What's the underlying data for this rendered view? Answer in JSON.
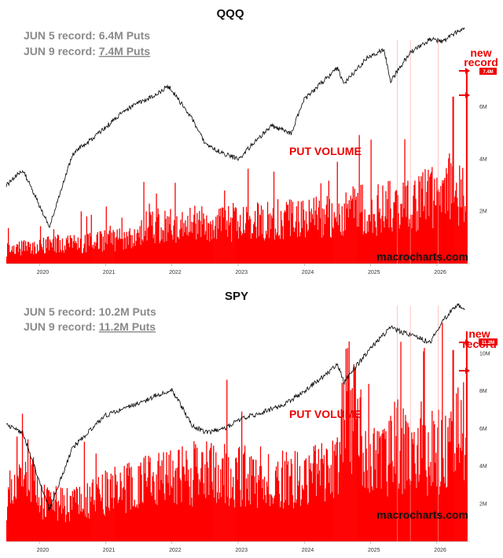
{
  "chart_data": [
    {
      "type": "bar",
      "title": "QQQ",
      "subtitle_lines": [
        {
          "prefix": "JUN 5 record: ",
          "value": "6.4M Puts"
        },
        {
          "prefix": "JUN 9 record: ",
          "value": "7.4M Puts"
        }
      ],
      "series_label": "PUT VOLUME",
      "annotation": "new record",
      "badge": "7.4M",
      "watermark": "macrocharts.com",
      "x_ticks": [
        "2020",
        "2021",
        "2022",
        "2023",
        "2024",
        "2025",
        "2026"
      ],
      "y_ticks": [
        "2M",
        "4M",
        "6M"
      ],
      "y_tick_values": [
        2,
        4,
        6
      ],
      "ylim": [
        0,
        9.2
      ],
      "xlim": [
        2019.5,
        2026.5
      ],
      "series": [
        {
          "name": "PUT VOLUME",
          "kind": "bars",
          "color": "#ff0000",
          "x": [
            2019.5,
            2020.0,
            2020.25,
            2020.5,
            2021.0,
            2021.5,
            2021.55,
            2022.0,
            2022.5,
            2023.0,
            2023.5,
            2024.0,
            2024.5,
            2024.6,
            2025.0,
            2025.3,
            2025.5,
            2025.7,
            2025.85,
            2026.0,
            2026.2,
            2026.3,
            2026.4,
            2026.44
          ],
          "values": [
            0.6,
            0.8,
            0.9,
            0.85,
            1.0,
            1.1,
            1.6,
            1.7,
            1.8,
            1.8,
            1.9,
            2.0,
            2.1,
            2.4,
            2.3,
            2.5,
            2.8,
            2.6,
            2.9,
            3.0,
            3.3,
            3.0,
            6.4,
            7.4
          ]
        },
        {
          "kind": "price",
          "color": "#000000",
          "x": [
            2019.5,
            2019.75,
            2020.15,
            2020.5,
            2020.9,
            2021.3,
            2021.7,
            2021.95,
            2022.3,
            2022.5,
            2022.8,
            2023.0,
            2023.5,
            2023.8,
            2024.0,
            2024.5,
            2024.6,
            2024.95,
            2025.2,
            2025.3,
            2025.6,
            2025.9,
            2026.1,
            2026.3,
            2026.42
          ],
          "values": [
            3.0,
            3.6,
            1.4,
            4.2,
            5.0,
            5.9,
            6.4,
            6.8,
            5.6,
            4.6,
            4.2,
            4.0,
            5.3,
            5.0,
            6.3,
            7.5,
            6.9,
            7.9,
            8.2,
            7.0,
            8.1,
            8.6,
            8.5,
            8.9,
            9.0
          ]
        }
      ]
    },
    {
      "type": "bar",
      "title": "SPY",
      "subtitle_lines": [
        {
          "prefix": "JUN 5 record: ",
          "value": "10.2M Puts"
        },
        {
          "prefix": "JUN 9 record: ",
          "value": "11.2M Puts"
        }
      ],
      "series_label": "PUT VOLUME",
      "annotation": "new record",
      "badge": "11.2M",
      "watermark": "macrocharts.com",
      "x_ticks": [
        "2020",
        "2021",
        "2022",
        "2023",
        "2024",
        "2025",
        "2026"
      ],
      "y_ticks": [
        "2M",
        "4M",
        "6M",
        "8M",
        "10M"
      ],
      "y_tick_values": [
        2,
        4,
        6,
        8,
        10
      ],
      "ylim": [
        0,
        13.5
      ],
      "xlim": [
        2019.5,
        2026.5
      ],
      "series": [
        {
          "name": "PUT VOLUME",
          "kind": "bars",
          "color": "#ff0000",
          "x": [
            2019.5,
            2019.65,
            2019.75,
            2020.0,
            2020.5,
            2021.0,
            2021.5,
            2022.0,
            2022.5,
            2023.0,
            2023.5,
            2024.0,
            2024.5,
            2024.6,
            2025.0,
            2025.2,
            2025.4,
            2025.6,
            2025.8,
            2026.0,
            2026.2,
            2026.3,
            2026.4,
            2026.44
          ],
          "values": [
            2.5,
            4.5,
            5.5,
            2.4,
            2.2,
            3.0,
            3.4,
            4.0,
            4.2,
            4.0,
            3.9,
            3.8,
            4.3,
            9.0,
            4.6,
            5.0,
            6.0,
            4.8,
            5.2,
            5.5,
            5.8,
            7.0,
            10.2,
            11.2
          ]
        },
        {
          "kind": "price",
          "color": "#000000",
          "x": [
            2019.5,
            2019.75,
            2020.15,
            2020.5,
            2021.0,
            2021.5,
            2022.0,
            2022.3,
            2022.5,
            2022.8,
            2023.0,
            2023.3,
            2023.7,
            2024.0,
            2024.5,
            2024.6,
            2024.95,
            2025.3,
            2025.6,
            2025.9,
            2026.1,
            2026.3,
            2026.42
          ],
          "values": [
            6.2,
            5.8,
            1.7,
            5.0,
            6.7,
            7.4,
            8.1,
            6.2,
            5.8,
            6.0,
            6.5,
            6.8,
            7.3,
            8.0,
            9.4,
            8.5,
            10.1,
            11.4,
            11.0,
            10.6,
            11.8,
            12.6,
            12.4
          ]
        }
      ]
    }
  ]
}
